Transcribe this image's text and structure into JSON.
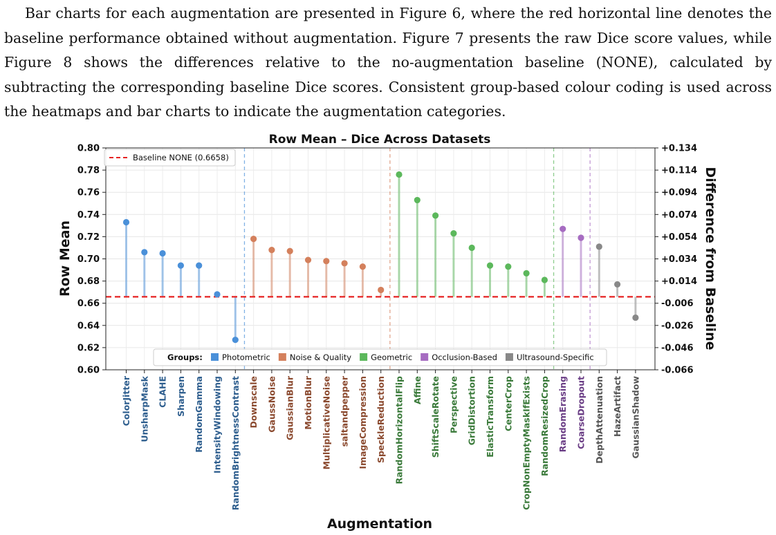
{
  "paragraph": "Bar charts for each augmentation are presented in Figure 6, where the red horizontal line denotes the baseline performance obtained without augmentation. Figure 7 presents the raw Dice score values, while Figure 8 shows the differences relative to the no-augmentation baseline (NONE), calculated by subtracting the corresponding baseline Dice scores. Consistent group-based colour coding is used across the heatmaps and bar charts to indicate the augmentation categories.",
  "chart_data": {
    "type": "lollipop",
    "title": "Row Mean – Dice Across Datasets",
    "xlabel": "Augmentation",
    "ylabel": "Row Mean",
    "ylabel_right": "Difference from Baseline",
    "ylim": [
      0.6,
      0.8
    ],
    "yticks": [
      "0.60",
      "0.62",
      "0.64",
      "0.66",
      "0.68",
      "0.70",
      "0.72",
      "0.74",
      "0.76",
      "0.78",
      "0.80"
    ],
    "yticks_right": [
      "-0.066",
      "-0.046",
      "-0.026",
      "-0.006",
      "+0.014",
      "+0.034",
      "+0.054",
      "+0.074",
      "+0.094",
      "+0.114",
      "+0.134"
    ],
    "baseline": 0.6658,
    "baseline_label": "Baseline NONE (0.6658)",
    "grid": true,
    "legend_baseline_position": "top-left",
    "legend_groups_position": "bottom-center",
    "groups_title": "Groups:",
    "groups": [
      {
        "name": "Photometric",
        "color": "#4a90d9",
        "label_color": "#2e5e8e"
      },
      {
        "name": "Noise & Quality",
        "color": "#d4805c",
        "label_color": "#8b4a2f"
      },
      {
        "name": "Geometric",
        "color": "#5cb85c",
        "label_color": "#3a7a3a"
      },
      {
        "name": "Occlusion-Based",
        "color": "#a66cc1",
        "label_color": "#6a3d85"
      },
      {
        "name": "Ultrasound-Specific",
        "color": "#888888",
        "label_color": "#555555"
      }
    ],
    "points": [
      {
        "label": "ColorJitter",
        "value": 0.733,
        "group": 0
      },
      {
        "label": "UnsharpMask",
        "value": 0.706,
        "group": 0
      },
      {
        "label": "CLAHE",
        "value": 0.705,
        "group": 0
      },
      {
        "label": "Sharpen",
        "value": 0.694,
        "group": 0
      },
      {
        "label": "RandomGamma",
        "value": 0.694,
        "group": 0
      },
      {
        "label": "IntensityWindowing",
        "value": 0.668,
        "group": 0
      },
      {
        "label": "RandomBrightnessContrast",
        "value": 0.627,
        "group": 0
      },
      {
        "label": "Downscale",
        "value": 0.718,
        "group": 1
      },
      {
        "label": "GaussNoise",
        "value": 0.708,
        "group": 1
      },
      {
        "label": "GaussianBlur",
        "value": 0.707,
        "group": 1
      },
      {
        "label": "MotionBlur",
        "value": 0.699,
        "group": 1
      },
      {
        "label": "MultiplicativeNoise",
        "value": 0.698,
        "group": 1
      },
      {
        "label": "saltandpepper",
        "value": 0.696,
        "group": 1
      },
      {
        "label": "ImageCompression",
        "value": 0.693,
        "group": 1
      },
      {
        "label": "SpeckleReduction",
        "value": 0.672,
        "group": 1
      },
      {
        "label": "RandomHorizontalFlip",
        "value": 0.776,
        "group": 2
      },
      {
        "label": "Affine",
        "value": 0.753,
        "group": 2
      },
      {
        "label": "ShiftScaleRotate",
        "value": 0.739,
        "group": 2
      },
      {
        "label": "Perspective",
        "value": 0.723,
        "group": 2
      },
      {
        "label": "GridDistortion",
        "value": 0.71,
        "group": 2
      },
      {
        "label": "ElasticTransform",
        "value": 0.694,
        "group": 2
      },
      {
        "label": "CenterCrop",
        "value": 0.693,
        "group": 2
      },
      {
        "label": "CropNonEmptyMaskIfExists",
        "value": 0.687,
        "group": 2
      },
      {
        "label": "RandomResizedCrop",
        "value": 0.681,
        "group": 2
      },
      {
        "label": "RandomErasing",
        "value": 0.727,
        "group": 3
      },
      {
        "label": "CoarseDropout",
        "value": 0.719,
        "group": 3
      },
      {
        "label": "DepthAttenuation",
        "value": 0.711,
        "group": 4
      },
      {
        "label": "HazeArtifact",
        "value": 0.677,
        "group": 4
      },
      {
        "label": "GaussianShadow",
        "value": 0.647,
        "group": 4
      }
    ]
  }
}
